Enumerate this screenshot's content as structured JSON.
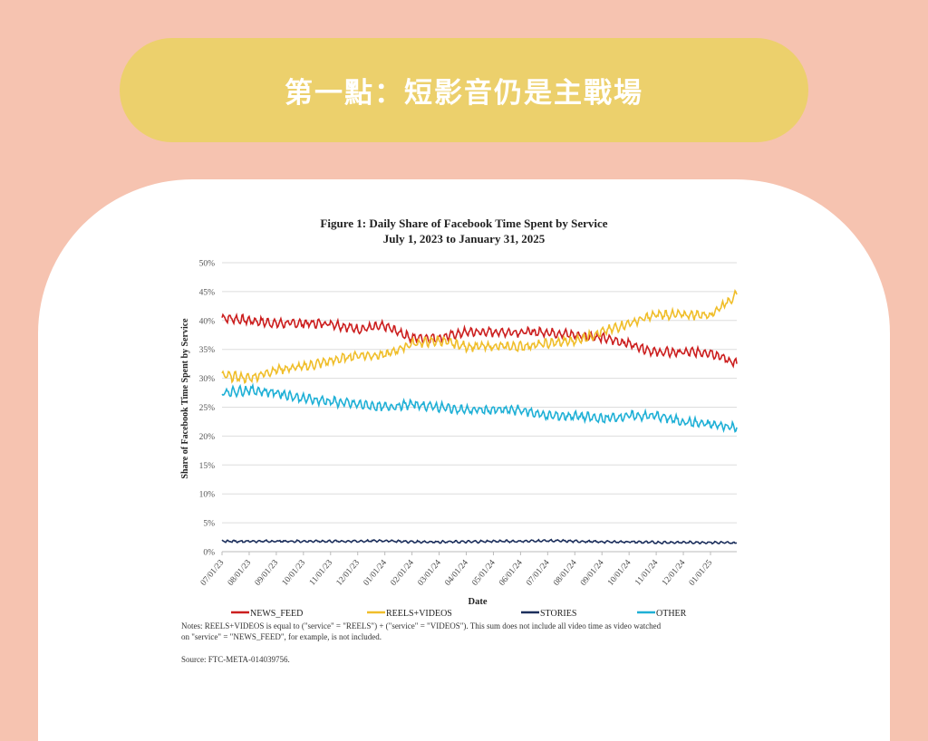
{
  "header": {
    "title": "第一點：短影音仍是主戰場"
  },
  "colors": {
    "background": "#f6c3b0",
    "pill": "#ecd06c",
    "news_feed": "#cc1f1f",
    "reels_videos": "#f0be2a",
    "stories": "#1c2f5c",
    "other": "#1fb0d6"
  },
  "chart_data": {
    "type": "line",
    "title": "Figure 1: Daily Share of Facebook Time Spent by Service",
    "subtitle": "July 1, 2023 to January 31, 2025",
    "xlabel": "Date",
    "ylabel": "Share of Facebook Time Spent by Service",
    "ylim": [
      0,
      50
    ],
    "yticks": [
      "0%",
      "5%",
      "10%",
      "15%",
      "20%",
      "25%",
      "30%",
      "35%",
      "40%",
      "45%",
      "50%"
    ],
    "xticks": [
      "07/01/23",
      "08/01/23",
      "09/01/23",
      "10/01/23",
      "11/01/23",
      "12/01/23",
      "01/01/24",
      "02/01/24",
      "03/01/24",
      "04/01/24",
      "05/01/24",
      "06/01/24",
      "07/01/24",
      "08/01/24",
      "09/01/24",
      "10/01/24",
      "11/01/24",
      "12/01/24",
      "01/01/25"
    ],
    "x_note": "monthly anchor values; last value is 01/31/25",
    "grid": true,
    "legend_position": "bottom",
    "series": [
      {
        "name": "NEWS_FEED",
        "color": "#cc1f1f",
        "values": [
          40.5,
          40,
          39.5,
          39.5,
          39.5,
          38.5,
          39,
          37,
          37,
          38,
          38,
          38,
          38,
          37.5,
          37,
          36,
          34.5,
          34.5,
          34.5,
          32.5
        ]
      },
      {
        "name": "REELS+VIDEOS",
        "color": "#f0be2a",
        "values": [
          30.5,
          30,
          31.5,
          32,
          33,
          34,
          34,
          36,
          36.5,
          35.5,
          35.5,
          35.5,
          36,
          36.5,
          38,
          39.5,
          41,
          41,
          41,
          44.5
        ]
      },
      {
        "name": "STORIES",
        "color": "#1c2f5c",
        "values": [
          1.8,
          1.8,
          1.8,
          1.8,
          1.8,
          1.8,
          1.9,
          1.7,
          1.7,
          1.7,
          1.8,
          1.8,
          1.9,
          1.8,
          1.7,
          1.7,
          1.6,
          1.6,
          1.6,
          1.5
        ]
      },
      {
        "name": "OTHER",
        "color": "#1fb0d6",
        "values": [
          27.5,
          28,
          27.5,
          26.5,
          26,
          25.5,
          25,
          25.5,
          25,
          24.5,
          24.5,
          24.5,
          23.5,
          23.5,
          23,
          23.5,
          23.5,
          22.5,
          22,
          21.5
        ]
      }
    ],
    "notes": [
      "Notes: REELS+VIDEOS is equal to (\"service\" = \"REELS\") + (\"service\" = \"VIDEOS\").  This sum does not include all video time as video watched",
      "on \"service\" = \"NEWS_FEED\", for example, is not included."
    ],
    "source": "Source: FTC-META-014039756."
  }
}
